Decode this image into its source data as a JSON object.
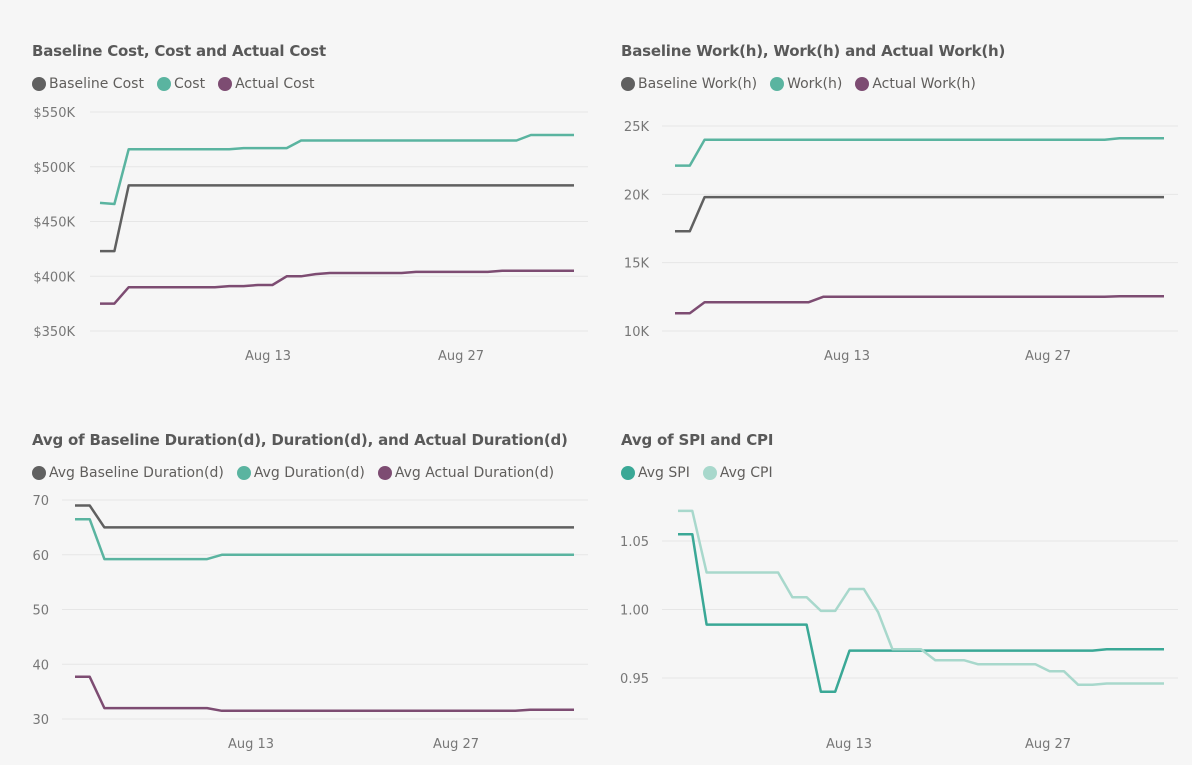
{
  "charts": [
    {
      "title": "Baseline Cost, Cost and Actual Cost",
      "chart_data": {
        "type": "line",
        "x_ticks": [
          "Aug 13",
          "Aug 27"
        ],
        "y_ticks": [
          "$350K",
          "$400K",
          "$450K",
          "$500K",
          "$550K"
        ],
        "ylim": [
          350000,
          550000
        ],
        "series": [
          {
            "name": "Baseline Cost",
            "color": "#606060",
            "values": [
              423000,
              423000,
              483000,
              483000,
              483000,
              483000,
              483000,
              483000,
              483000,
              483000,
              483000,
              483000,
              483000,
              483000,
              483000,
              483000,
              483000,
              483000,
              483000,
              483000,
              483000,
              483000,
              483000,
              483000,
              483000,
              483000,
              483000,
              483000,
              483000,
              483000,
              483000,
              483000,
              483000,
              483000
            ]
          },
          {
            "name": "Cost",
            "color": "#5ab4a0",
            "values": [
              467000,
              466000,
              516000,
              516000,
              516000,
              516000,
              516000,
              516000,
              516000,
              516000,
              517000,
              517000,
              517000,
              517000,
              524000,
              524000,
              524000,
              524000,
              524000,
              524000,
              524000,
              524000,
              524000,
              524000,
              524000,
              524000,
              524000,
              524000,
              524000,
              524000,
              529000,
              529000,
              529000,
              529000
            ]
          },
          {
            "name": "Actual Cost",
            "color": "#7d4c72",
            "values": [
              375000,
              375000,
              390000,
              390000,
              390000,
              390000,
              390000,
              390000,
              390000,
              391000,
              391000,
              392000,
              392000,
              400000,
              400000,
              402000,
              403000,
              403000,
              403000,
              403000,
              403000,
              403000,
              404000,
              404000,
              404000,
              404000,
              404000,
              404000,
              405000,
              405000,
              405000,
              405000,
              405000,
              405000
            ]
          }
        ]
      }
    },
    {
      "title": "Baseline Work(h), Work(h) and Actual Work(h)",
      "chart_data": {
        "type": "line",
        "x_ticks": [
          "Aug 13",
          "Aug 27"
        ],
        "y_ticks": [
          "10K",
          "15K",
          "20K",
          "25K"
        ],
        "ylim": [
          10000,
          25000
        ],
        "series": [
          {
            "name": "Baseline Work(h)",
            "color": "#606060",
            "values": [
              17300,
              17300,
              19800,
              19800,
              19800,
              19800,
              19800,
              19800,
              19800,
              19800,
              19800,
              19800,
              19800,
              19800,
              19800,
              19800,
              19800,
              19800,
              19800,
              19800,
              19800,
              19800,
              19800,
              19800,
              19800,
              19800,
              19800,
              19800,
              19800,
              19800,
              19800,
              19800,
              19800,
              19800
            ]
          },
          {
            "name": "Work(h)",
            "color": "#5ab4a0",
            "values": [
              22100,
              22100,
              24000,
              24000,
              24000,
              24000,
              24000,
              24000,
              24000,
              24000,
              24000,
              24000,
              24000,
              24000,
              24000,
              24000,
              24000,
              24000,
              24000,
              24000,
              24000,
              24000,
              24000,
              24000,
              24000,
              24000,
              24000,
              24000,
              24000,
              24000,
              24100,
              24100,
              24100,
              24100
            ]
          },
          {
            "name": "Actual Work(h)",
            "color": "#7d4c72",
            "values": [
              11300,
              11300,
              12100,
              12100,
              12100,
              12100,
              12100,
              12100,
              12100,
              12100,
              12500,
              12500,
              12500,
              12500,
              12500,
              12500,
              12500,
              12500,
              12500,
              12500,
              12500,
              12500,
              12500,
              12500,
              12500,
              12500,
              12500,
              12500,
              12500,
              12500,
              12550,
              12550,
              12550,
              12550
            ]
          }
        ]
      }
    },
    {
      "title": "Avg of Baseline Duration(d), Duration(d), and Actual Duration(d)",
      "chart_data": {
        "type": "line",
        "x_ticks": [
          "Aug 13",
          "Aug 27"
        ],
        "y_ticks": [
          "30",
          "40",
          "50",
          "60",
          "70"
        ],
        "ylim": [
          30,
          70
        ],
        "series": [
          {
            "name": "Avg Baseline Duration(d)",
            "color": "#606060",
            "values": [
              69,
              69,
              65,
              65,
              65,
              65,
              65,
              65,
              65,
              65,
              65,
              65,
              65,
              65,
              65,
              65,
              65,
              65,
              65,
              65,
              65,
              65,
              65,
              65,
              65,
              65,
              65,
              65,
              65,
              65,
              65,
              65,
              65,
              65,
              65
            ]
          },
          {
            "name": "Avg Duration(d)",
            "color": "#5ab4a0",
            "values": [
              66.5,
              66.5,
              59.2,
              59.2,
              59.2,
              59.2,
              59.2,
              59.2,
              59.2,
              59.2,
              60,
              60,
              60,
              60,
              60,
              60,
              60,
              60,
              60,
              60,
              60,
              60,
              60,
              60,
              60,
              60,
              60,
              60,
              60,
              60,
              60,
              60,
              60,
              60,
              60
            ]
          },
          {
            "name": "Avg Actual Duration(d)",
            "color": "#7d4c72",
            "values": [
              37.7,
              37.7,
              32,
              32,
              32,
              32,
              32,
              32,
              32,
              32,
              31.5,
              31.5,
              31.5,
              31.5,
              31.5,
              31.5,
              31.5,
              31.5,
              31.5,
              31.5,
              31.5,
              31.5,
              31.5,
              31.5,
              31.5,
              31.5,
              31.5,
              31.5,
              31.5,
              31.5,
              31.5,
              31.7,
              31.7,
              31.7,
              31.7
            ]
          }
        ]
      }
    },
    {
      "title": "Avg of SPI and CPI",
      "chart_data": {
        "type": "line",
        "x_ticks": [
          "Aug 13",
          "Aug 27"
        ],
        "y_ticks": [
          "0.95",
          "1.00",
          "1.05"
        ],
        "ylim": [
          0.95,
          1.05
        ],
        "series": [
          {
            "name": "Avg SPI",
            "color": "#3aa896",
            "values": [
              1.055,
              1.055,
              0.989,
              0.989,
              0.989,
              0.989,
              0.989,
              0.989,
              0.989,
              0.989,
              0.94,
              0.94,
              0.97,
              0.97,
              0.97,
              0.97,
              0.97,
              0.97,
              0.97,
              0.97,
              0.97,
              0.97,
              0.97,
              0.97,
              0.97,
              0.97,
              0.97,
              0.97,
              0.97,
              0.97,
              0.971,
              0.971,
              0.971,
              0.971,
              0.971
            ]
          },
          {
            "name": "Avg CPI",
            "color": "#a8d8cc",
            "values": [
              1.072,
              1.072,
              1.027,
              1.027,
              1.027,
              1.027,
              1.027,
              1.027,
              1.009,
              1.009,
              0.999,
              0.999,
              1.015,
              1.015,
              0.998,
              0.971,
              0.971,
              0.971,
              0.963,
              0.963,
              0.963,
              0.96,
              0.96,
              0.96,
              0.96,
              0.96,
              0.955,
              0.955,
              0.945,
              0.945,
              0.946,
              0.946,
              0.946,
              0.946,
              0.946
            ]
          }
        ]
      }
    }
  ]
}
